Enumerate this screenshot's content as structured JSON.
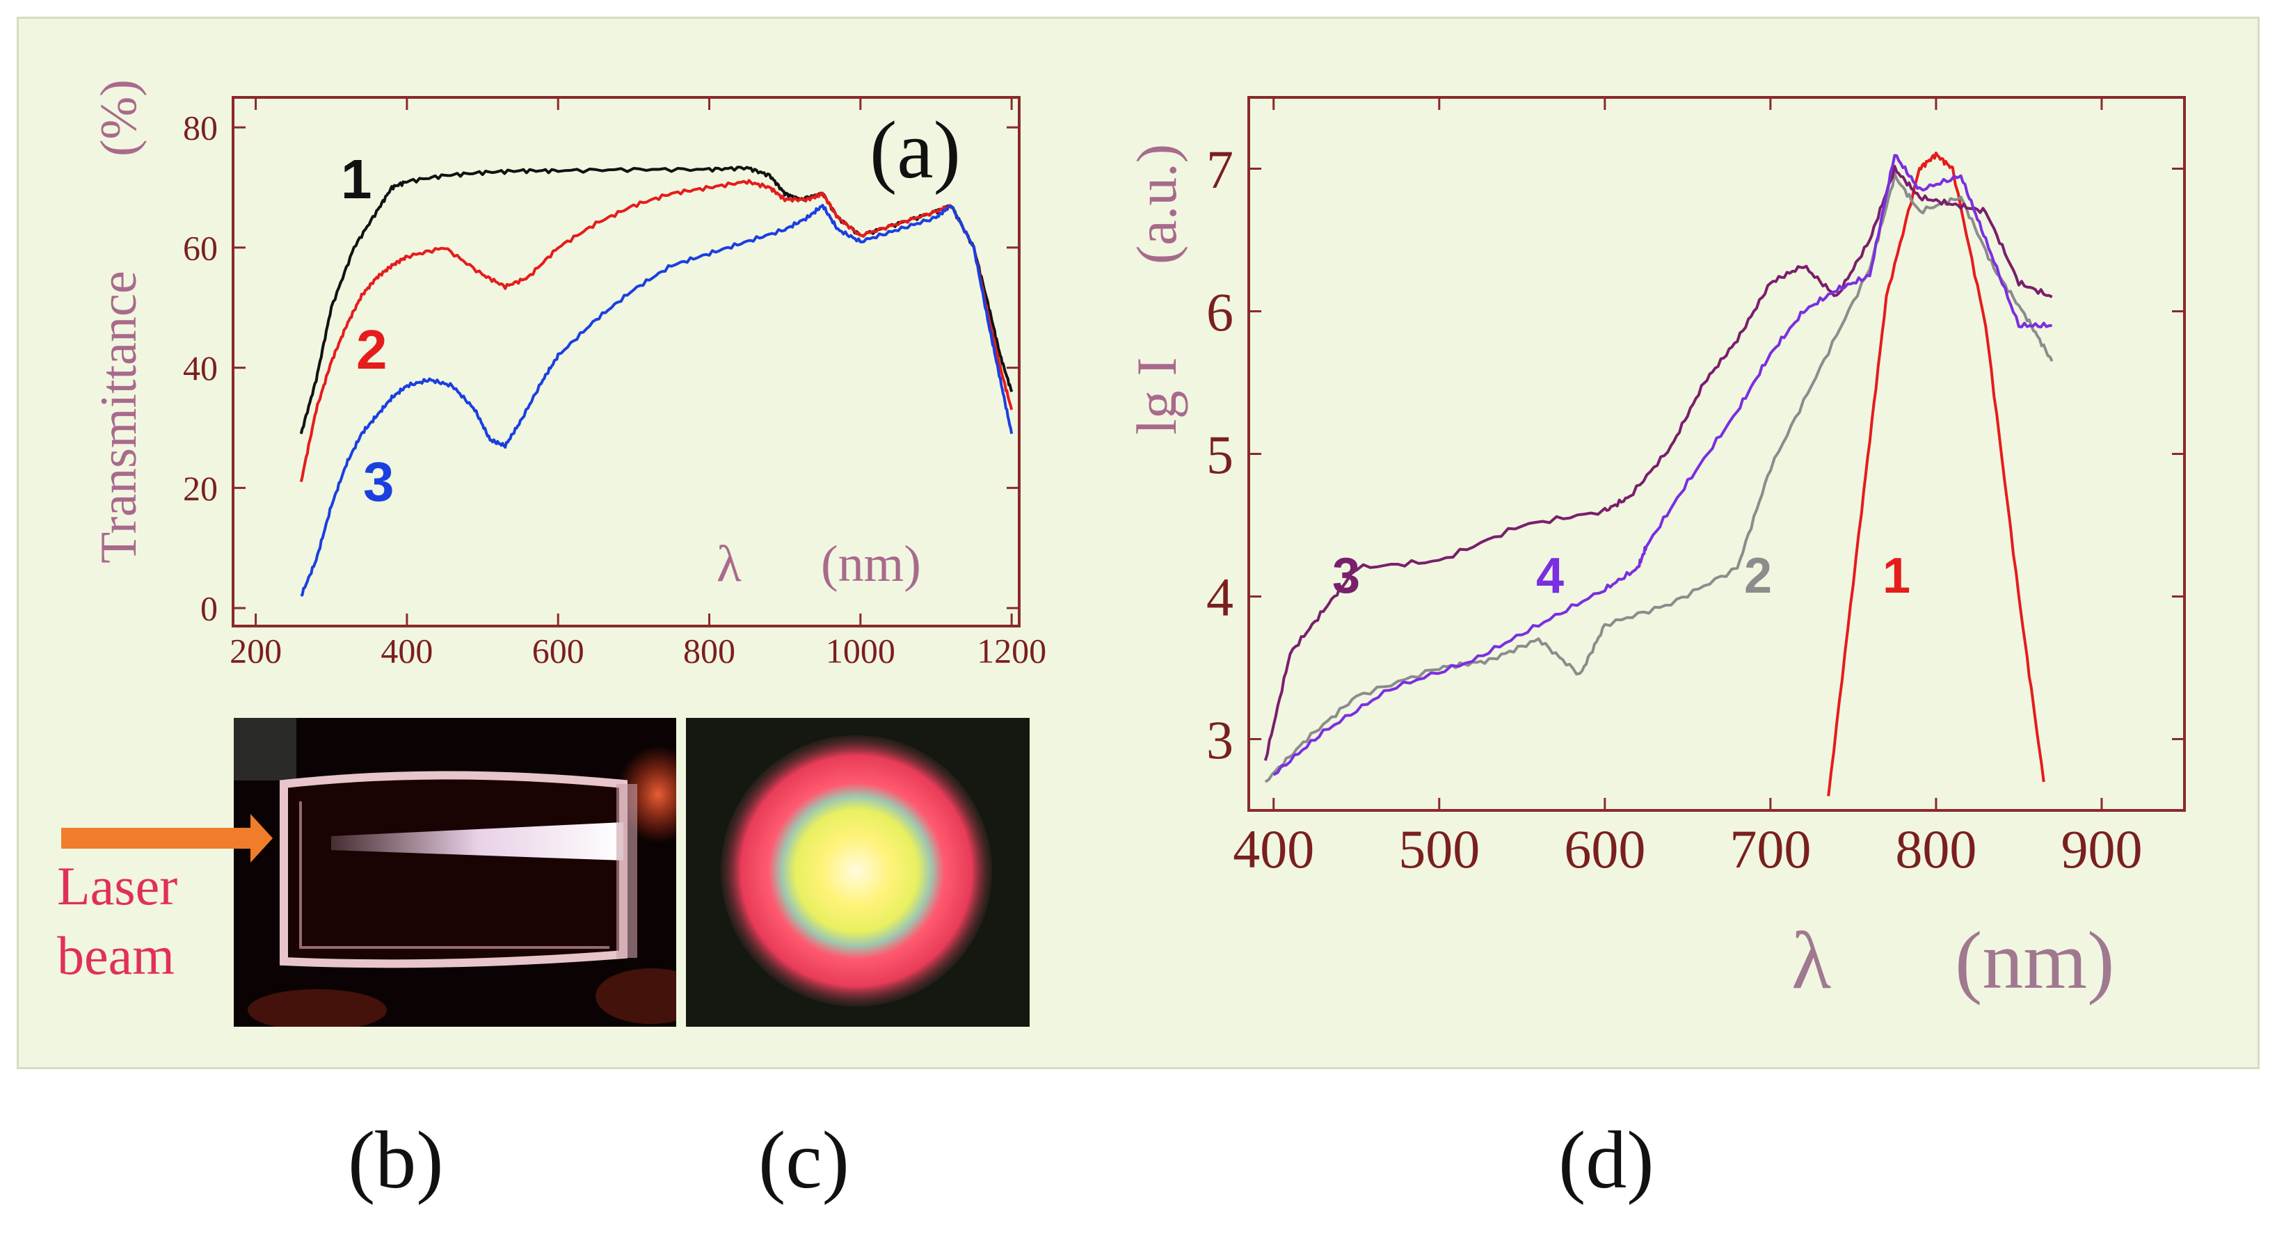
{
  "panel_a": {
    "tag": "(a)",
    "ylabel": "Transmittance",
    "yunit": "(%)",
    "xsymbol": "λ",
    "xunit": "(nm)",
    "xticks": [
      "200",
      "400",
      "600",
      "800",
      "1000",
      "1200"
    ],
    "yticks": [
      "0",
      "20",
      "40",
      "60",
      "80"
    ],
    "curve_labels": [
      "1",
      "2",
      "3"
    ]
  },
  "panel_b": {
    "laser_label_line1": "Laser",
    "laser_label_line2": "beam"
  },
  "panel_d": {
    "ylabel": "lg I",
    "yunit": "(a.u.)",
    "xsymbol": "λ",
    "xunit": "(nm)",
    "xticks": [
      "400",
      "500",
      "600",
      "700",
      "800",
      "900"
    ],
    "yticks": [
      "3",
      "4",
      "5",
      "6",
      "7"
    ],
    "curve_labels": [
      "3",
      "4",
      "2",
      "1"
    ]
  },
  "captions": {
    "b": "(b)",
    "c": "(c)",
    "d": "(d)"
  },
  "colors": {
    "background": "#f1f6e0",
    "axis": "#8a2a2a",
    "tick_text": "#7a1f1f",
    "label_text": "#a86a8c",
    "curve1": "#111111",
    "curve2": "#e51c1c",
    "curve3": "#1a3fe0",
    "d_curve1": "#e51c1c",
    "d_curve2": "#8c8c8c",
    "d_curve3": "#7a1f6b",
    "d_curve4": "#7a2fe0"
  },
  "chart_data": [
    {
      "type": "line",
      "xlabel": "λ (nm)",
      "ylabel": "Transmittance (%)",
      "xlim": [
        170,
        1210
      ],
      "ylim": [
        -3,
        85
      ],
      "grid": false,
      "series": [
        {
          "name": "1",
          "x": [
            260,
            280,
            300,
            330,
            360,
            380,
            400,
            450,
            500,
            550,
            600,
            700,
            800,
            850,
            880,
            900,
            920,
            950,
            970,
            1000,
            1050,
            1100,
            1120,
            1150,
            1170,
            1185,
            1200
          ],
          "y": [
            29,
            38,
            50,
            60,
            66,
            70,
            71,
            72,
            72.5,
            72.8,
            72.8,
            73,
            73,
            73.3,
            72,
            69,
            68,
            69,
            65,
            62,
            64,
            66,
            67,
            60,
            50,
            42,
            36
          ]
        },
        {
          "name": "2",
          "x": [
            260,
            280,
            300,
            320,
            340,
            360,
            380,
            400,
            450,
            500,
            530,
            560,
            600,
            650,
            700,
            750,
            800,
            850,
            880,
            900,
            930,
            950,
            970,
            1000,
            1050,
            1100,
            1120,
            1150,
            1170,
            1185,
            1200
          ],
          "y": [
            21,
            33,
            41,
            47,
            52,
            55,
            57,
            58.5,
            60,
            55.5,
            53.5,
            55,
            60,
            64,
            67,
            69,
            70,
            71,
            70,
            68,
            68,
            69,
            65,
            62,
            64,
            66,
            67,
            60,
            48,
            40,
            33
          ]
        },
        {
          "name": "3",
          "x": [
            260,
            280,
            300,
            320,
            340,
            360,
            380,
            400,
            430,
            460,
            490,
            510,
            530,
            550,
            580,
            600,
            650,
            700,
            750,
            800,
            850,
            900,
            930,
            950,
            970,
            1000,
            1050,
            1100,
            1120,
            1150,
            1170,
            1185,
            1200
          ],
          "y": [
            2,
            8,
            17,
            24,
            29,
            32,
            35,
            37,
            38,
            37,
            33,
            28,
            27,
            31,
            38,
            42,
            48,
            53,
            57,
            59,
            61,
            63,
            65,
            67,
            63,
            61,
            63,
            65,
            67,
            60,
            47,
            38,
            29
          ]
        }
      ]
    },
    {
      "type": "line",
      "xlabel": "λ (nm)",
      "ylabel": "lg I (a.u.)",
      "xlim": [
        385,
        950
      ],
      "ylim": [
        2.5,
        7.5
      ],
      "grid": false,
      "series": [
        {
          "name": "1",
          "x": [
            735,
            755,
            770,
            790,
            800,
            810,
            830,
            850,
            865
          ],
          "y": [
            2.6,
            4.6,
            6.1,
            7.0,
            7.1,
            7.0,
            5.9,
            4.0,
            2.7
          ]
        },
        {
          "name": "2",
          "x": [
            395,
            420,
            450,
            500,
            530,
            560,
            585,
            600,
            640,
            680,
            700,
            730,
            760,
            775,
            790,
            815,
            835,
            855,
            870
          ],
          "y": [
            2.7,
            3.0,
            3.3,
            3.5,
            3.55,
            3.7,
            3.45,
            3.8,
            3.95,
            4.2,
            4.9,
            5.6,
            6.3,
            6.95,
            6.7,
            6.8,
            6.3,
            5.95,
            5.65
          ]
        },
        {
          "name": "3",
          "x": [
            395,
            410,
            430,
            450,
            500,
            550,
            600,
            615,
            640,
            660,
            680,
            700,
            720,
            740,
            760,
            775,
            790,
            810,
            830,
            850,
            870
          ],
          "y": [
            2.85,
            3.6,
            3.9,
            4.2,
            4.25,
            4.5,
            4.6,
            4.7,
            5.05,
            5.5,
            5.8,
            6.2,
            6.32,
            6.1,
            6.5,
            7.0,
            6.8,
            6.75,
            6.7,
            6.2,
            6.1
          ]
        },
        {
          "name": "4",
          "x": [
            400,
            430,
            470,
            520,
            560,
            600,
            620,
            625,
            650,
            680,
            700,
            720,
            740,
            760,
            775,
            790,
            815,
            830,
            850,
            870
          ],
          "y": [
            2.75,
            3.05,
            3.35,
            3.55,
            3.8,
            4.05,
            4.2,
            4.35,
            4.8,
            5.3,
            5.7,
            6.0,
            6.15,
            6.25,
            7.1,
            6.85,
            6.95,
            6.5,
            5.9,
            5.9
          ]
        }
      ]
    }
  ]
}
